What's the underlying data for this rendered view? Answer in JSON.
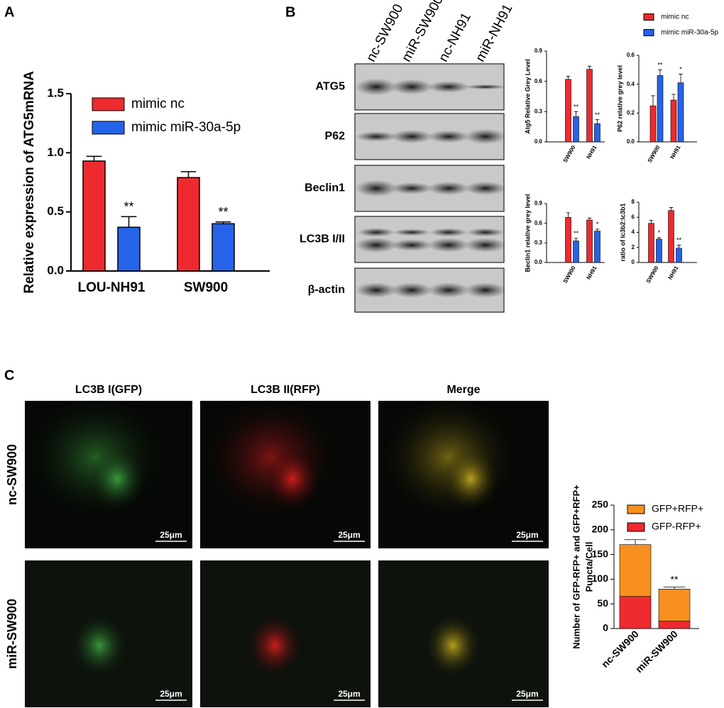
{
  "panel_labels": [
    "A",
    "B",
    "C"
  ],
  "blot": {
    "lanes": [
      "nc-SW900",
      "miR-SW900",
      "nc-NH91",
      "miR-NH91"
    ],
    "rows": [
      "ATG5",
      "P62",
      "Beclin1",
      "LC3B I/II",
      "β-actin"
    ]
  },
  "microscopy": {
    "columns": [
      "LC3B I(GFP)",
      "LC3B II(RFP)",
      "Merge"
    ],
    "rows": [
      "nc-SW900",
      "miR-SW900"
    ],
    "scale_bar": "25μm"
  },
  "chart_data": [
    {
      "type": "bar",
      "ylabel": "Relative expression of ATG5mRNA",
      "categories": [
        "LOU-NH91",
        "SW900"
      ],
      "series": [
        {
          "name": "mimic nc",
          "color": "#ee2a2f",
          "values": [
            0.93,
            0.79
          ],
          "errors": [
            0.04,
            0.05
          ]
        },
        {
          "name": "mimic miR-30a-5p",
          "color": "#2563e8",
          "values": [
            0.37,
            0.4
          ],
          "errors": [
            0.09,
            0.015
          ],
          "significance": [
            "**",
            "**"
          ]
        }
      ],
      "ylim": [
        0,
        1.5
      ],
      "yticks": [
        {
          "value": 0,
          "label": "0.0"
        },
        {
          "value": 0.5,
          "label": "0.5"
        },
        {
          "value": 1,
          "label": "1.0"
        },
        {
          "value": 1.5,
          "label": "1.5"
        }
      ]
    },
    {
      "type": "bar",
      "ylabel": "Atg5 Relative Grey Level",
      "categories": [
        "SW900",
        "NH91"
      ],
      "series": [
        {
          "name": "mimic nc",
          "color": "#ee2a2f",
          "values": [
            0.62,
            0.72
          ],
          "errors": [
            0.03,
            0.03
          ]
        },
        {
          "name": "mimic miR-30a-5p",
          "color": "#2563e8",
          "values": [
            0.25,
            0.18
          ],
          "errors": [
            0.05,
            0.04
          ],
          "significance": [
            "**",
            "**"
          ]
        }
      ],
      "ylim": [
        0,
        0.9
      ],
      "yticks": [
        {
          "value": 0,
          "label": "0.0"
        },
        {
          "value": 0.3,
          "label": "0.3"
        },
        {
          "value": 0.6,
          "label": "0.6"
        },
        {
          "value": 0.9,
          "label": "0.9"
        }
      ]
    },
    {
      "type": "bar",
      "ylabel": "P62 relative grey level",
      "categories": [
        "SW900",
        "NH91"
      ],
      "series": [
        {
          "color": "#ee2a2f",
          "values": [
            0.25,
            0.29
          ],
          "errors": [
            0.07,
            0.04
          ]
        },
        {
          "color": "#2563e8",
          "values": [
            0.46,
            0.41
          ],
          "errors": [
            0.04,
            0.06
          ],
          "significance": [
            "**",
            "*"
          ]
        }
      ],
      "ylim": [
        0,
        0.6
      ],
      "yticks": [
        {
          "value": 0,
          "label": "0.0"
        },
        {
          "value": 0.2,
          "label": "0.2"
        },
        {
          "value": 0.4,
          "label": "0.4"
        },
        {
          "value": 0.6,
          "label": "0.6"
        }
      ]
    },
    {
      "type": "bar",
      "ylabel": "Beclin1 relative grey level",
      "categories": [
        "SW900",
        "NH91"
      ],
      "series": [
        {
          "color": "#ee2a2f",
          "values": [
            0.69,
            0.65
          ],
          "errors": [
            0.07,
            0.03
          ]
        },
        {
          "color": "#2563e8",
          "values": [
            0.33,
            0.48
          ],
          "errors": [
            0.04,
            0.03
          ],
          "significance": [
            "**",
            "*"
          ]
        }
      ],
      "ylim": [
        0,
        0.9
      ],
      "yticks": [
        {
          "value": 0,
          "label": "0.0"
        },
        {
          "value": 0.3,
          "label": "0.3"
        },
        {
          "value": 0.6,
          "label": "0.6"
        },
        {
          "value": 0.9,
          "label": "0.9"
        }
      ]
    },
    {
      "type": "bar",
      "ylabel": "ratio of lc3b2:lc3b1",
      "categories": [
        "SW900",
        "NH91"
      ],
      "series": [
        {
          "color": "#ee2a2f",
          "values": [
            5.2,
            6.9
          ],
          "errors": [
            0.4,
            0.4
          ]
        },
        {
          "color": "#2563e8",
          "values": [
            3.1,
            1.9
          ],
          "errors": [
            0.2,
            0.4
          ],
          "significance": [
            "*",
            "**"
          ]
        }
      ],
      "ylim": [
        0,
        8
      ],
      "yticks": [
        0,
        2,
        4,
        6,
        8
      ]
    },
    {
      "type": "bar",
      "stacked": true,
      "ylabel": [
        "Number of GFP-RFP+ and GFP+RFP+",
        "Puncta/Cell"
      ],
      "categories": [
        "nc-SW900",
        "miR-SW900"
      ],
      "series": [
        {
          "name": "GFP-RFP+",
          "color": "#ee2a2f",
          "values": [
            65,
            15
          ],
          "errors": [
            6,
            2
          ]
        },
        {
          "name": "GFP+RFP+",
          "color": "#f7901e",
          "values": [
            105,
            65
          ],
          "errors": [
            10,
            4
          ],
          "significance": [
            null,
            "**"
          ]
        }
      ],
      "ylim": [
        0,
        250
      ],
      "yticks": [
        0,
        50,
        100,
        150,
        200,
        250
      ]
    }
  ]
}
